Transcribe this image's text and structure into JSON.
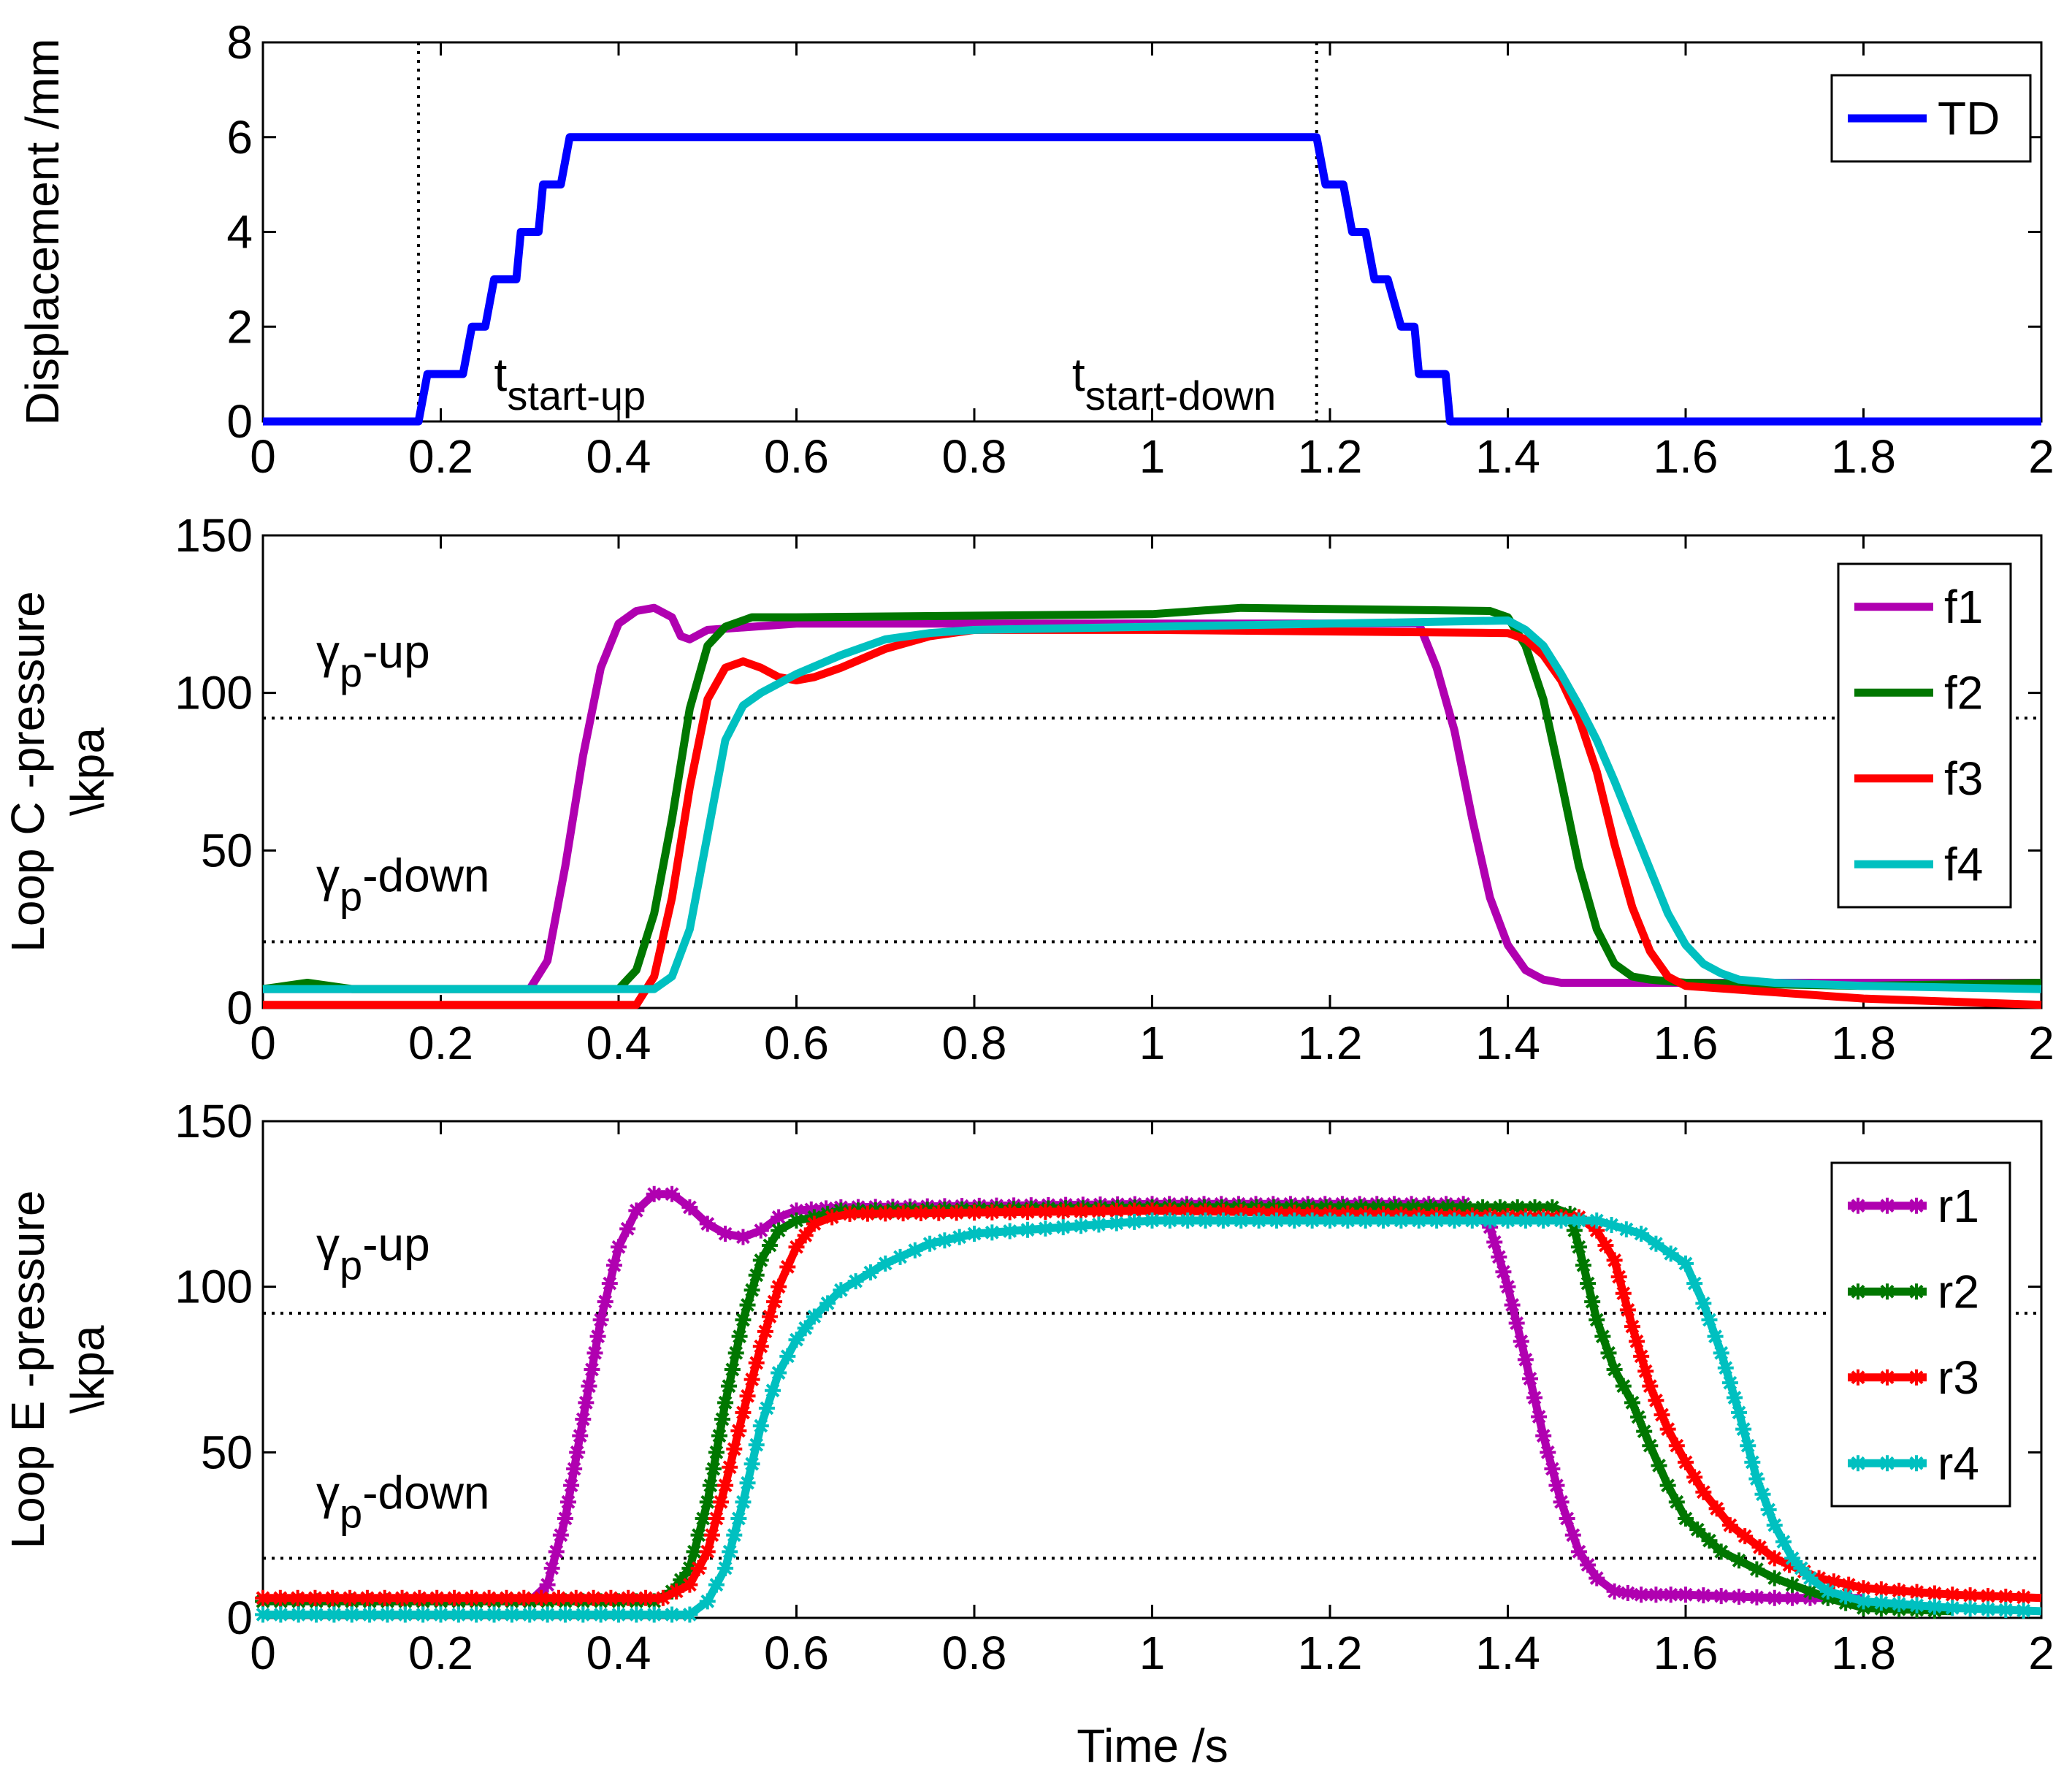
{
  "figure": {
    "xlabel": "Time /s"
  },
  "chart_data": [
    {
      "type": "line",
      "ylabel": "Displacement /mm",
      "xlim": [
        0,
        2
      ],
      "ylim": [
        0,
        8
      ],
      "xticks": [
        "0",
        "0.2",
        "0.4",
        "0.6",
        "0.8",
        "1",
        "1.2",
        "1.4",
        "1.6",
        "1.8",
        "2"
      ],
      "yticks": [
        "0",
        "2",
        "4",
        "6",
        "8"
      ],
      "legend": "top-right",
      "vlines": [
        0.175,
        1.185
      ],
      "annotations": [
        {
          "base": "t",
          "sub": "start-up",
          "x": 0.26,
          "y": 0.65
        },
        {
          "base": "t",
          "sub": "start-down",
          "x": 0.91,
          "y": 0.65
        }
      ],
      "series": [
        {
          "name": "TD",
          "color": "#0000ff",
          "marker": "none",
          "x": [
            0,
            0.175,
            0.185,
            0.2,
            0.215,
            0.225,
            0.235,
            0.245,
            0.25,
            0.26,
            0.265,
            0.28,
            0.285,
            0.29,
            0.3,
            0.31,
            0.315,
            0.33,
            0.335,
            0.345,
            0.35,
            1.185,
            1.195,
            1.21,
            1.215,
            1.225,
            1.23,
            1.24,
            1.25,
            1.26,
            1.265,
            1.28,
            1.285,
            1.295,
            1.3,
            1.31,
            1.32,
            1.33,
            1.335,
            1.345,
            2.0
          ],
          "y": [
            0,
            0,
            1,
            1,
            1,
            1,
            2,
            2,
            2,
            3,
            3,
            3,
            3,
            4,
            4,
            4,
            5,
            5,
            5,
            6,
            6,
            6,
            5,
            5,
            5,
            4,
            4,
            4,
            3,
            3,
            3,
            2,
            2,
            2,
            1,
            1,
            1,
            1,
            0,
            0,
            0
          ]
        }
      ]
    },
    {
      "type": "line",
      "ylabel": "Loop C -pressure \\kpa",
      "xlim": [
        0,
        2
      ],
      "ylim": [
        0,
        150
      ],
      "xticks": [
        "0",
        "0.2",
        "0.4",
        "0.6",
        "0.8",
        "1",
        "1.2",
        "1.4",
        "1.6",
        "1.8",
        "2"
      ],
      "yticks": [
        "0",
        "50",
        "100",
        "150"
      ],
      "legend": "top-right",
      "hlines": [
        92,
        21
      ],
      "annotations": [
        {
          "base": "γ",
          "sub": "p",
          "text": "-up",
          "x": 0.06,
          "y": 108
        },
        {
          "base": "γ",
          "sub": "p",
          "text": "-down",
          "x": 0.06,
          "y": 37
        }
      ],
      "series": [
        {
          "name": "f1",
          "color": "#b000b0",
          "marker": "none",
          "x": [
            0,
            0.3,
            0.32,
            0.34,
            0.36,
            0.38,
            0.4,
            0.42,
            0.44,
            0.46,
            0.47,
            0.48,
            0.5,
            0.6,
            1.0,
            1.3,
            1.32,
            1.34,
            1.36,
            1.38,
            1.4,
            1.42,
            1.44,
            1.46,
            1.5,
            2.0
          ],
          "y": [
            6,
            6,
            15,
            45,
            80,
            108,
            122,
            126,
            127,
            124,
            118,
            117,
            120,
            122,
            122,
            122,
            108,
            88,
            60,
            35,
            20,
            12,
            9,
            8,
            8,
            8
          ]
        },
        {
          "name": "f2",
          "color": "#007700",
          "marker": "none",
          "x": [
            0,
            0.05,
            0.1,
            0.4,
            0.42,
            0.44,
            0.46,
            0.48,
            0.5,
            0.52,
            0.55,
            0.6,
            1.0,
            1.1,
            1.38,
            1.4,
            1.42,
            1.44,
            1.46,
            1.48,
            1.5,
            1.52,
            1.54,
            1.56,
            1.6,
            1.8,
            2.0
          ],
          "y": [
            6,
            8,
            6,
            6,
            12,
            30,
            60,
            95,
            115,
            121,
            124,
            124,
            125,
            127,
            126,
            124,
            115,
            98,
            72,
            45,
            25,
            14,
            10,
            9,
            8,
            7,
            8
          ]
        },
        {
          "name": "f3",
          "color": "#ff0000",
          "marker": "none",
          "x": [
            0,
            0.42,
            0.44,
            0.46,
            0.48,
            0.5,
            0.52,
            0.54,
            0.56,
            0.58,
            0.6,
            0.62,
            0.65,
            0.7,
            0.75,
            0.8,
            1.0,
            1.4,
            1.42,
            1.44,
            1.46,
            1.48,
            1.5,
            1.52,
            1.54,
            1.56,
            1.58,
            1.6,
            1.8,
            2.0
          ],
          "y": [
            1,
            1,
            10,
            35,
            70,
            98,
            108,
            110,
            108,
            105,
            104,
            105,
            108,
            114,
            118,
            120,
            120,
            119,
            117,
            112,
            104,
            92,
            75,
            52,
            32,
            18,
            10,
            7,
            3,
            1
          ]
        },
        {
          "name": "f4",
          "color": "#00c0c0",
          "marker": "none",
          "x": [
            0,
            0.44,
            0.46,
            0.48,
            0.5,
            0.52,
            0.54,
            0.56,
            0.6,
            0.65,
            0.7,
            0.75,
            0.8,
            1.0,
            1.4,
            1.42,
            1.44,
            1.46,
            1.48,
            1.5,
            1.52,
            1.54,
            1.56,
            1.58,
            1.6,
            1.62,
            1.64,
            1.66,
            1.7,
            1.8,
            2.0
          ],
          "y": [
            6,
            6,
            10,
            25,
            55,
            85,
            96,
            100,
            106,
            112,
            117,
            119,
            120,
            121,
            123,
            120,
            115,
            106,
            96,
            85,
            72,
            58,
            44,
            30,
            20,
            14,
            11,
            9,
            8,
            7,
            6
          ]
        }
      ]
    },
    {
      "type": "line",
      "ylabel": "Loop E -pressure \\kpa",
      "xlim": [
        0,
        2
      ],
      "ylim": [
        0,
        150
      ],
      "xticks": [
        "0",
        "0.2",
        "0.4",
        "0.6",
        "0.8",
        "1",
        "1.2",
        "1.4",
        "1.6",
        "1.8",
        "2"
      ],
      "yticks": [
        "0",
        "50",
        "100",
        "150"
      ],
      "legend": "top-right",
      "hlines": [
        92,
        18
      ],
      "annotations": [
        {
          "base": "γ",
          "sub": "p",
          "text": "-up",
          "x": 0.06,
          "y": 108
        },
        {
          "base": "γ",
          "sub": "p",
          "text": "-down",
          "x": 0.06,
          "y": 33
        }
      ],
      "series": [
        {
          "name": "r1",
          "color": "#b000b0",
          "marker": "star",
          "x": [
            0,
            0.3,
            0.32,
            0.34,
            0.36,
            0.38,
            0.4,
            0.42,
            0.44,
            0.46,
            0.48,
            0.5,
            0.52,
            0.54,
            0.56,
            0.58,
            0.6,
            0.65,
            1.0,
            1.35,
            1.38,
            1.4,
            1.42,
            1.44,
            1.46,
            1.48,
            1.5,
            1.52,
            1.55,
            1.6,
            1.7,
            1.8
          ],
          "y": [
            5,
            5,
            10,
            30,
            60,
            90,
            112,
            123,
            128,
            128,
            124,
            119,
            116,
            115,
            117,
            121,
            123,
            124,
            125,
            125,
            118,
            100,
            78,
            55,
            35,
            20,
            12,
            8,
            7,
            7,
            6,
            6
          ]
        },
        {
          "name": "r2",
          "color": "#007700",
          "marker": "star",
          "x": [
            0,
            0.44,
            0.46,
            0.48,
            0.5,
            0.52,
            0.54,
            0.56,
            0.58,
            0.6,
            0.62,
            0.65,
            1.0,
            1.45,
            1.47,
            1.48,
            1.5,
            1.52,
            1.54,
            1.56,
            1.58,
            1.6,
            1.64,
            1.7,
            1.76,
            1.8,
            1.9
          ],
          "y": [
            5,
            5,
            8,
            15,
            35,
            65,
            90,
            108,
            117,
            120,
            121,
            123,
            124,
            124,
            122,
            112,
            90,
            75,
            65,
            52,
            40,
            30,
            20,
            12,
            6,
            3,
            2
          ]
        },
        {
          "name": "r3",
          "color": "#ff0000",
          "marker": "star",
          "x": [
            0,
            0.45,
            0.48,
            0.5,
            0.52,
            0.54,
            0.56,
            0.58,
            0.6,
            0.62,
            0.64,
            0.66,
            1.0,
            1.48,
            1.5,
            1.52,
            1.54,
            1.56,
            1.58,
            1.6,
            1.62,
            1.65,
            1.7,
            1.75,
            1.8,
            1.9,
            2.0
          ],
          "y": [
            6,
            6,
            10,
            20,
            40,
            62,
            82,
            100,
            112,
            119,
            121,
            122,
            123,
            121,
            117,
            108,
            88,
            70,
            57,
            47,
            38,
            28,
            18,
            12,
            9,
            7,
            6
          ]
        },
        {
          "name": "r4",
          "color": "#00c0c0",
          "marker": "star",
          "x": [
            0,
            0.48,
            0.5,
            0.52,
            0.54,
            0.56,
            0.58,
            0.6,
            0.62,
            0.65,
            0.7,
            0.75,
            0.8,
            0.9,
            1.0,
            1.5,
            1.55,
            1.6,
            1.62,
            1.64,
            1.66,
            1.68,
            1.7,
            1.72,
            1.74,
            1.76,
            1.8,
            1.9,
            2.0
          ],
          "y": [
            1,
            1,
            5,
            15,
            35,
            58,
            74,
            84,
            91,
            99,
            107,
            113,
            116,
            118,
            120,
            120,
            116,
            107,
            95,
            80,
            62,
            42,
            28,
            18,
            12,
            8,
            5,
            3,
            2
          ]
        }
      ]
    }
  ]
}
